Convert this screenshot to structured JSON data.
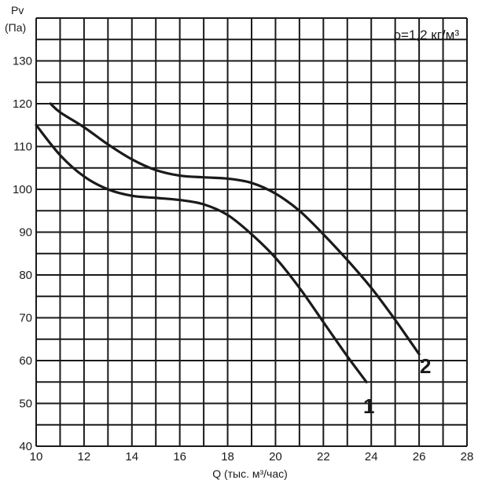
{
  "chart_data": {
    "type": "line",
    "y_title_line1": "Pv",
    "y_title_line2": "(Па)",
    "xlabel": "Q (тыс. м³/час)",
    "annotation": "ρ=1,2 кг/м³",
    "xlim": [
      10,
      28
    ],
    "ylim": [
      40,
      140
    ],
    "x_ticks": [
      10,
      12,
      14,
      16,
      18,
      20,
      22,
      24,
      26,
      28
    ],
    "y_ticks": [
      40,
      50,
      60,
      70,
      80,
      90,
      100,
      110,
      120,
      130
    ],
    "grid": true,
    "series": [
      {
        "name": "1",
        "x": [
          10.0,
          11.0,
          12.0,
          13.0,
          14.0,
          15.0,
          16.0,
          17.0,
          18.0,
          19.0,
          20.0,
          21.0,
          22.0,
          23.0,
          23.8
        ],
        "y": [
          115,
          108,
          103,
          100,
          98.5,
          98,
          97.5,
          96.5,
          94,
          89.5,
          84,
          77,
          69,
          61,
          55
        ]
      },
      {
        "name": "2",
        "x": [
          10.6,
          11.0,
          12.0,
          13.0,
          14.0,
          15.0,
          16.0,
          17.0,
          18.0,
          19.0,
          20.0,
          21.0,
          22.0,
          23.0,
          24.0,
          25.0,
          26.0
        ],
        "y": [
          120,
          118,
          114.5,
          110.5,
          107,
          104.5,
          103.2,
          102.8,
          102.5,
          101.5,
          99,
          95,
          89.5,
          83.5,
          77,
          69.5,
          61.5
        ]
      }
    ]
  }
}
